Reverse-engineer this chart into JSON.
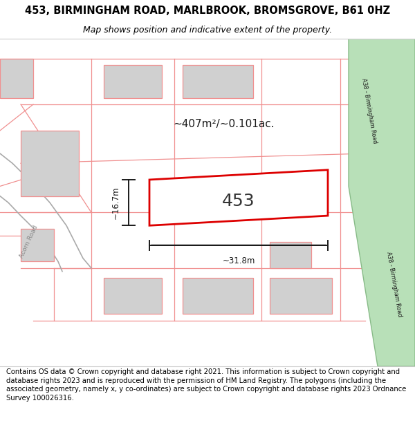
{
  "title": "453, BIRMINGHAM ROAD, MARLBROOK, BROMSGROVE, B61 0HZ",
  "subtitle": "Map shows position and indicative extent of the property.",
  "footer": "Contains OS data © Crown copyright and database right 2021. This information is subject to Crown copyright and database rights 2023 and is reproduced with the permission of HM Land Registry. The polygons (including the associated geometry, namely x, y co-ordinates) are subject to Crown copyright and database rights 2023 Ordnance Survey 100026316.",
  "road_label_top": "A38 - Birmingham Road",
  "road_label_bot": "A38 - Birmingham Road",
  "acorn_road_label": "Acorn Road",
  "property_label": "453",
  "area_label": "~407m²/~0.101ac.",
  "width_label": "~31.8m",
  "height_label": "~16.7m",
  "title_fontsize": 10.5,
  "subtitle_fontsize": 9,
  "footer_fontsize": 7.2,
  "property_outline_color": "#dd0000",
  "neighbor_fill": "#d0d0d0",
  "neighbor_outline": "#f09090",
  "plot_line_color": "#f09090",
  "dim_line_color": "#1a1a1a",
  "road_fill": "#b8e0b8",
  "road_edge": "#88bb88",
  "acorn_road_fill": "#e8e8e8",
  "acorn_road_edge": "#aaaaaa"
}
